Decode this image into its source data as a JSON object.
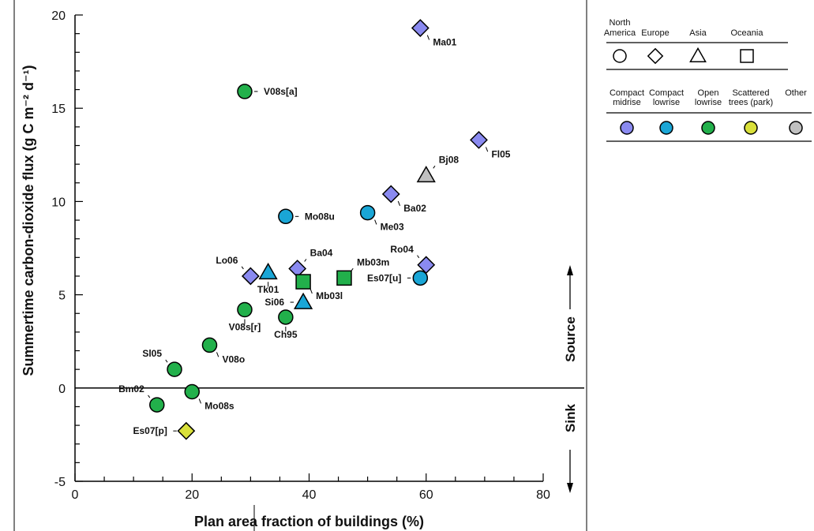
{
  "chart_data": {
    "type": "scatter",
    "title": "",
    "xlabel": "Plan area fraction of buildings (%)",
    "ylabel": "Summertime carbon-dioxide flux (g C m⁻² d⁻¹)",
    "xlim": [
      0,
      80
    ],
    "ylim": [
      -5,
      20
    ],
    "x_ticks": [
      "0",
      "20",
      "40",
      "60",
      "80"
    ],
    "y_ticks": [
      "-5",
      "0",
      "5",
      "10",
      "15",
      "20"
    ],
    "grid": false,
    "zero_line": true,
    "source_label": "Source",
    "sink_label": "Sink",
    "legend_placement": "top-right",
    "continent_legend": {
      "items": [
        {
          "label_lines": [
            "North",
            "America"
          ],
          "shape": "circle"
        },
        {
          "label_lines": [
            "Europe"
          ],
          "shape": "diamond"
        },
        {
          "label_lines": [
            "Asia"
          ],
          "shape": "triangle"
        },
        {
          "label_lines": [
            "Oceania"
          ],
          "shape": "square"
        }
      ]
    },
    "lcz_legend": {
      "items": [
        {
          "label_lines": [
            "Compact",
            "midrise"
          ],
          "key": "compact_midrise",
          "color": "#8a8af0"
        },
        {
          "label_lines": [
            "Compact",
            "lowrise"
          ],
          "key": "compact_lowrise",
          "color": "#1aa6d6"
        },
        {
          "label_lines": [
            "Open",
            "lowrise"
          ],
          "key": "open_lowrise",
          "color": "#22b04b"
        },
        {
          "label_lines": [
            "Scattered",
            "trees (park)"
          ],
          "key": "scattered_trees",
          "color": "#d9e03a"
        },
        {
          "label_lines": [
            "Other"
          ],
          "key": "other",
          "color": "#c0c0c0"
        }
      ]
    },
    "points": [
      {
        "label": "Ma01",
        "x": 59,
        "y": 19.3,
        "shape": "diamond",
        "lcz": "compact_midrise",
        "label_pos": "below-right"
      },
      {
        "label": "V08s[a]",
        "x": 29,
        "y": 15.9,
        "shape": "circle",
        "lcz": "open_lowrise",
        "label_pos": "right"
      },
      {
        "label": "Fl05",
        "x": 69,
        "y": 13.3,
        "shape": "diamond",
        "lcz": "compact_midrise",
        "label_pos": "below-right"
      },
      {
        "label": "Bj08",
        "x": 60,
        "y": 11.4,
        "shape": "triangle",
        "lcz": "other",
        "label_pos": "above-right"
      },
      {
        "label": "Ba02",
        "x": 54,
        "y": 10.4,
        "shape": "diamond",
        "lcz": "compact_midrise",
        "label_pos": "below-right"
      },
      {
        "label": "Mo08u",
        "x": 36,
        "y": 9.2,
        "shape": "circle",
        "lcz": "compact_lowrise",
        "label_pos": "right"
      },
      {
        "label": "Me03",
        "x": 50,
        "y": 9.4,
        "shape": "circle",
        "lcz": "compact_lowrise",
        "label_pos": "below-right"
      },
      {
        "label": "Ro04",
        "x": 60,
        "y": 6.6,
        "shape": "diamond",
        "lcz": "compact_midrise",
        "label_pos": "above-left"
      },
      {
        "label": "Es07[u]",
        "x": 59,
        "y": 5.9,
        "shape": "circle",
        "lcz": "compact_lowrise",
        "label_pos": "left"
      },
      {
        "label": "Lo06",
        "x": 30,
        "y": 6.0,
        "shape": "diamond",
        "lcz": "compact_midrise",
        "label_pos": "above-left"
      },
      {
        "label": "Tk01",
        "x": 33,
        "y": 6.2,
        "shape": "triangle",
        "lcz": "compact_lowrise",
        "label_pos": "below"
      },
      {
        "label": "Ba04",
        "x": 38,
        "y": 6.4,
        "shape": "diamond",
        "lcz": "compact_midrise",
        "label_pos": "above-right"
      },
      {
        "label": "Mb03l",
        "x": 39,
        "y": 5.7,
        "shape": "square",
        "lcz": "open_lowrise",
        "label_pos": "below-right"
      },
      {
        "label": "Mb03m",
        "x": 46,
        "y": 5.9,
        "shape": "square",
        "lcz": "open_lowrise",
        "label_pos": "above-right"
      },
      {
        "label": "Si06",
        "x": 39,
        "y": 4.6,
        "shape": "triangle",
        "lcz": "compact_lowrise",
        "label_pos": "left"
      },
      {
        "label": "V08s[r]",
        "x": 29,
        "y": 4.2,
        "shape": "circle",
        "lcz": "open_lowrise",
        "label_pos": "below"
      },
      {
        "label": "Ch95",
        "x": 36,
        "y": 3.8,
        "shape": "circle",
        "lcz": "open_lowrise",
        "label_pos": "below"
      },
      {
        "label": "V08o",
        "x": 23,
        "y": 2.3,
        "shape": "circle",
        "lcz": "open_lowrise",
        "label_pos": "below-right"
      },
      {
        "label": "Sl05",
        "x": 17,
        "y": 1.0,
        "shape": "circle",
        "lcz": "open_lowrise",
        "label_pos": "above-left"
      },
      {
        "label": "Mo08s",
        "x": 20,
        "y": -0.2,
        "shape": "circle",
        "lcz": "open_lowrise",
        "label_pos": "below-right"
      },
      {
        "label": "Bm02",
        "x": 14,
        "y": -0.9,
        "shape": "circle",
        "lcz": "open_lowrise",
        "label_pos": "above-left"
      },
      {
        "label": "Es07[p]",
        "x": 19,
        "y": -2.3,
        "shape": "diamond",
        "lcz": "scattered_trees",
        "label_pos": "left"
      }
    ]
  }
}
